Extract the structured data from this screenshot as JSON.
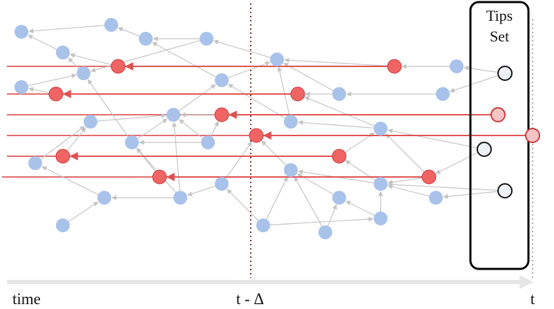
{
  "labels": {
    "tips_set_line1": "Tips",
    "tips_set_line2": "Set",
    "time": "time",
    "t_minus_delta": "t - Δ",
    "t": "t"
  },
  "colors": {
    "blue_node": "#a8c2ea",
    "red_node": "#f06464",
    "red_line": "#e05050",
    "edge": "#c4c4c4",
    "axis": "#e6e6e6",
    "tip_fill": "#eef2f8",
    "tip_red_fill": "#f7c4c4",
    "box_border": "#000000"
  }
}
